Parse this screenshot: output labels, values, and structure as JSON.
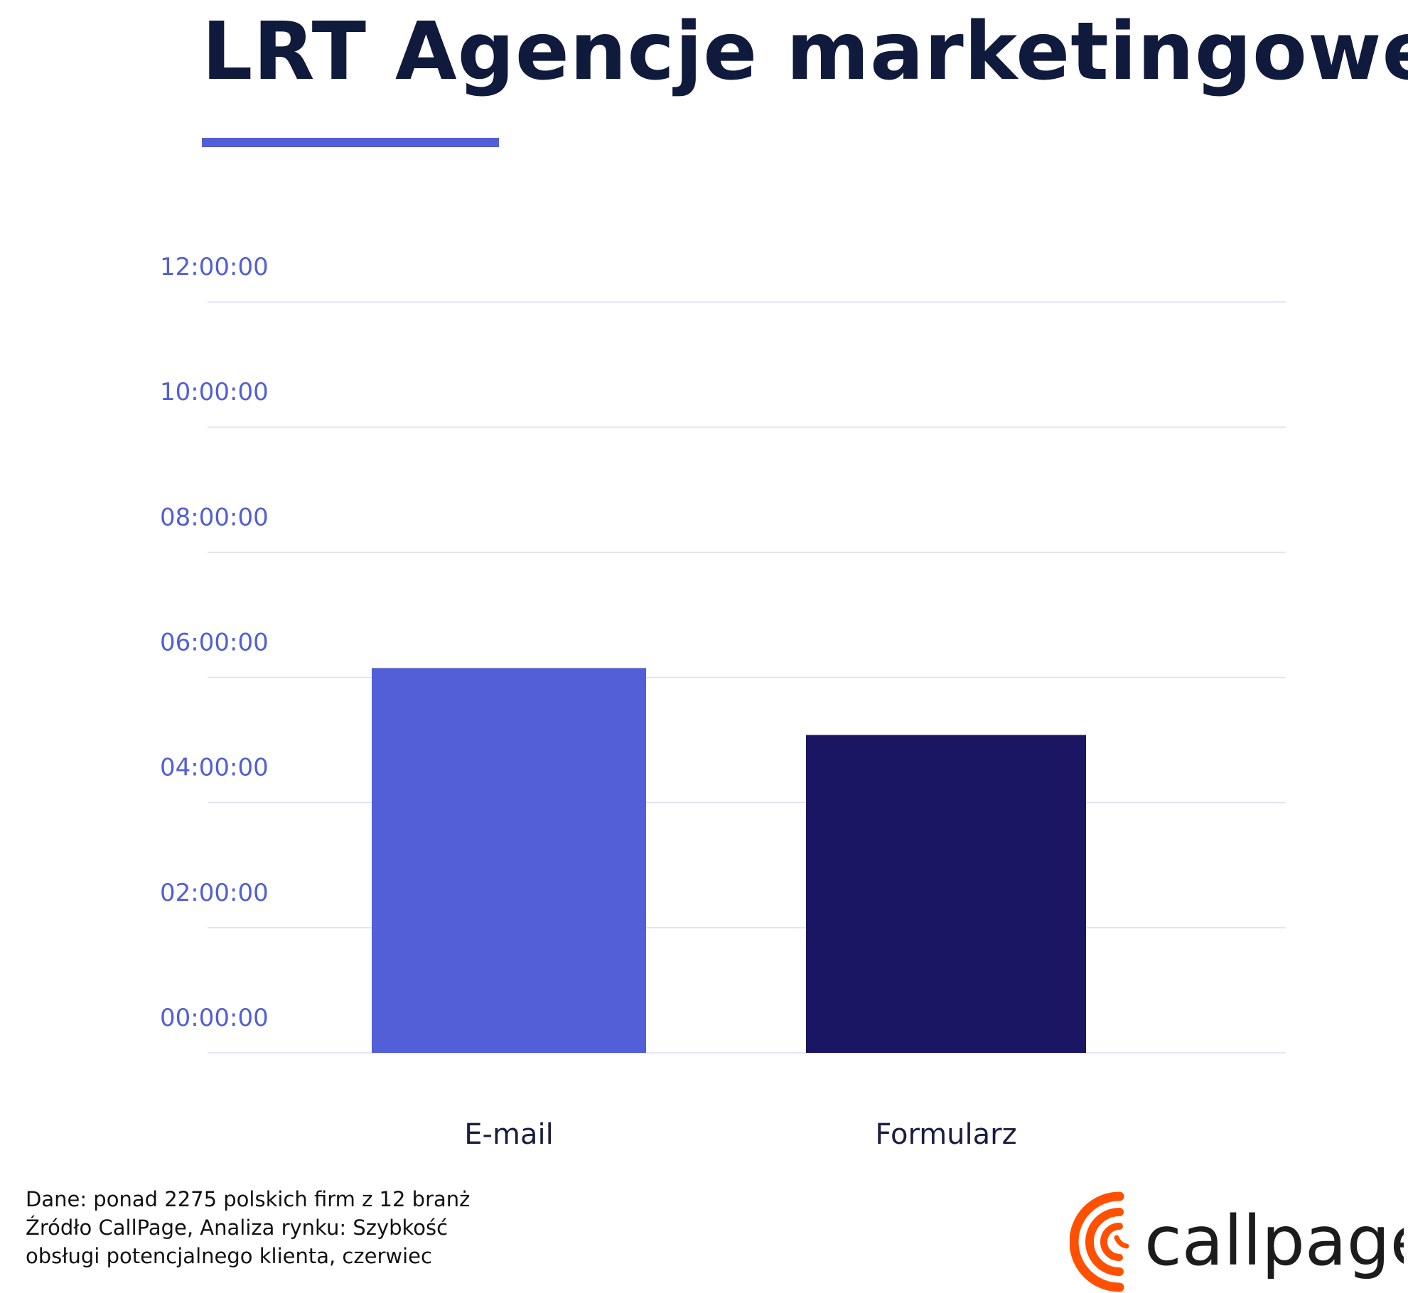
{
  "chart_data": {
    "type": "bar",
    "title": "LRT Agencje marketingowe",
    "categories": [
      "E-mail",
      "Formularz"
    ],
    "values_hours": [
      6.15,
      5.08
    ],
    "values": [
      "06:09:00",
      "05:05:00"
    ],
    "bar_colors": [
      "#525fd6",
      "#1b1663"
    ],
    "ylim": [
      0,
      12
    ],
    "yticks": [
      {
        "value": 0,
        "label": "00:00:00"
      },
      {
        "value": 2,
        "label": "02:00:00"
      },
      {
        "value": 4,
        "label": "04:00:00"
      },
      {
        "value": 6,
        "label": "06:00:00"
      },
      {
        "value": 8,
        "label": "08:00:00"
      },
      {
        "value": 10,
        "label": "10:00:00"
      },
      {
        "value": 12,
        "label": "12:00:00"
      }
    ],
    "grid": true,
    "xlabel": "",
    "ylabel": ""
  },
  "colors": {
    "accent": "#525fd6",
    "title": "#0f1a3c",
    "grid": "#dcdff5",
    "logo_orange": "#ff5000"
  },
  "footer": {
    "lines": [
      "Dane: ponad 2275 polskich firm z 12 branż",
      "Źródło CallPage, Analiza rynku: Szybkość",
      "obsługi potencjalnego klienta, czerwiec"
    ]
  },
  "logo": {
    "text": "callpage"
  }
}
